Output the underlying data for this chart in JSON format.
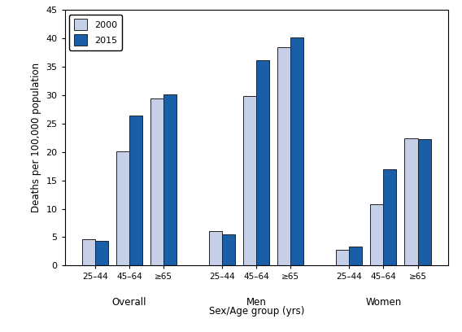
{
  "groups": [
    "Overall",
    "Men",
    "Women"
  ],
  "age_labels": [
    "25–44",
    "45–64",
    "≥65"
  ],
  "values_2000": {
    "Overall": [
      4.7,
      20.1,
      29.4
    ],
    "Men": [
      6.1,
      29.8,
      38.5
    ],
    "Women": [
      2.8,
      10.8,
      22.4
    ]
  },
  "values_2015": {
    "Overall": [
      4.4,
      26.4,
      30.2
    ],
    "Men": [
      5.5,
      36.2,
      40.2
    ],
    "Women": [
      3.3,
      17.0,
      22.2
    ]
  },
  "color_2000": "#c5cfe8",
  "color_2015": "#1a5ea8",
  "bar_edge_color": "#222222",
  "bar_width": 0.4,
  "ylim": [
    0,
    45
  ],
  "yticks": [
    0,
    5,
    10,
    15,
    20,
    25,
    30,
    35,
    40,
    45
  ],
  "ylabel": "Deaths per 100,000 population",
  "xlabel": "Sex/Age group (yrs)",
  "legend_labels": [
    "2000",
    "2015"
  ],
  "figsize": [
    5.68,
    4.08
  ],
  "dpi": 100
}
